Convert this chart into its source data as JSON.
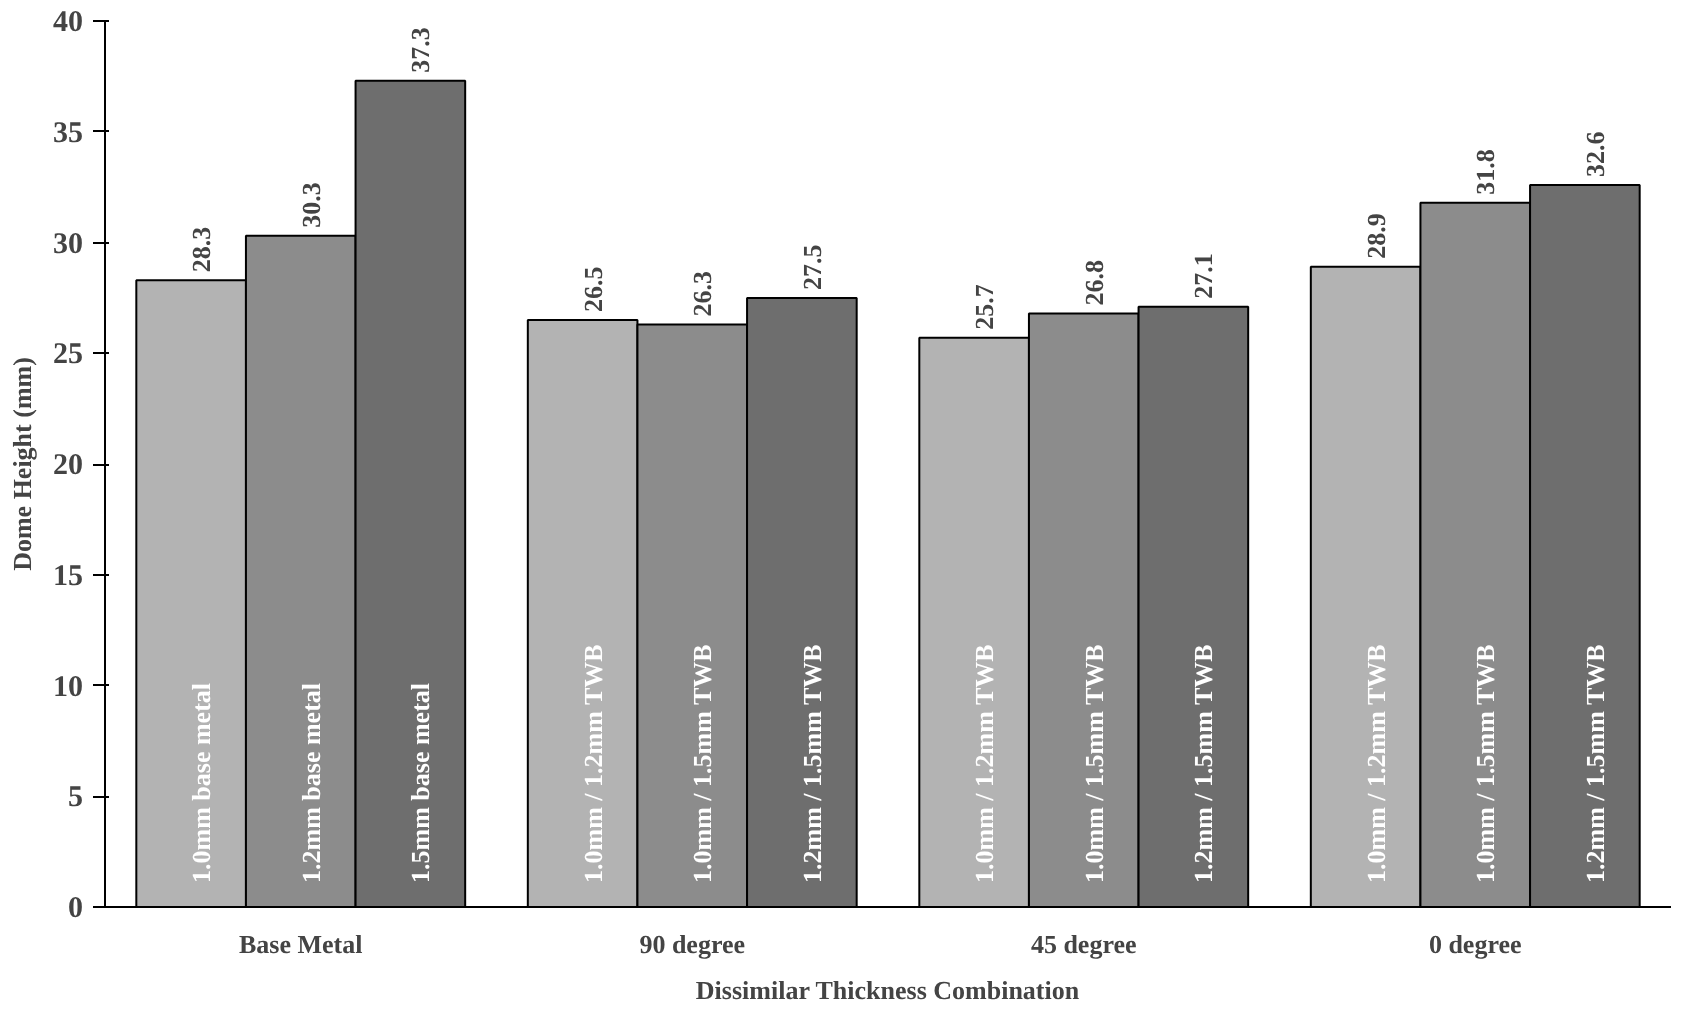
{
  "chart_data": {
    "type": "bar",
    "xlabel": "Dissimilar Thickness Combination",
    "ylabel": "Dome Height (mm)",
    "categories": [
      "Base Metal",
      "90 degree",
      "45 degree",
      "0 degree"
    ],
    "series": [
      {
        "color": "#b3b3b3",
        "values": [
          28.3,
          26.5,
          25.7,
          28.9
        ]
      },
      {
        "color": "#8c8c8c",
        "values": [
          30.3,
          26.3,
          26.8,
          31.8
        ]
      },
      {
        "color": "#6e6e6e",
        "values": [
          37.3,
          27.5,
          27.1,
          32.6
        ]
      }
    ],
    "data_labels": true,
    "ylim": [
      0,
      40
    ],
    "yticks": [
      0,
      5,
      10,
      15,
      20,
      25,
      30,
      35,
      40
    ],
    "grid": false,
    "annotations": [
      "1.0mm base metal",
      "1.2mm base metal",
      "1.5mm base metal",
      "1.0mm / 1.2mm TWB",
      "1.0mm / 1.5mm TWB",
      "1.2mm / 1.5mm TWB",
      "1.0mm / 1.2mm TWB",
      "1.0mm / 1.5mm TWB",
      "1.2mm / 1.5mm TWB",
      "1.0mm / 1.2mm TWB",
      "1.0mm / 1.5mm TWB",
      "1.2mm / 1.5mm TWB"
    ]
  }
}
